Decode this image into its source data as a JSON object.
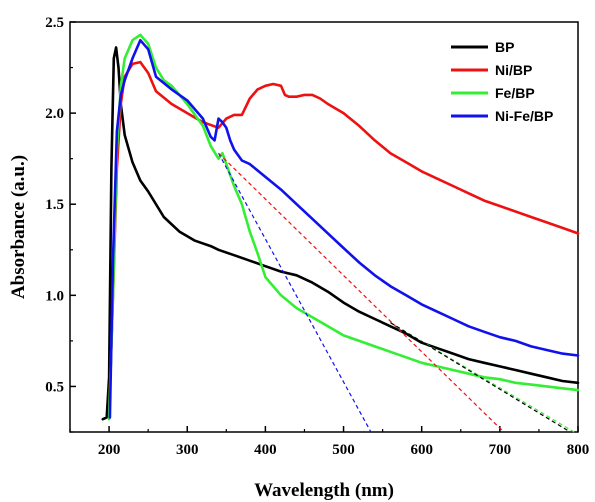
{
  "chart_data": {
    "type": "line",
    "title": "",
    "xlabel": "Wavelength (nm)",
    "ylabel": "Absorbance (a.u.)",
    "xlim": [
      150,
      800
    ],
    "ylim": [
      0.25,
      2.5
    ],
    "x_ticks": [
      200,
      300,
      400,
      500,
      600,
      700,
      800
    ],
    "x_tick_labels": [
      "200",
      "300",
      "400",
      "500",
      "600",
      "700",
      "800"
    ],
    "y_ticks": [
      0.5,
      1.0,
      1.5,
      2.0,
      2.5
    ],
    "y_tick_labels": [
      "0.5",
      "1.0",
      "1.5",
      "2.0",
      "2.5"
    ],
    "grid": false,
    "legend_position": "top-right",
    "series": [
      {
        "name": "BP",
        "color": "#000000",
        "style": "solid",
        "x": [
          192,
          197,
          200,
          203,
          206,
          209,
          212,
          215,
          220,
          230,
          240,
          250,
          270,
          290,
          310,
          330,
          340,
          360,
          380,
          400,
          420,
          440,
          460,
          480,
          500,
          520,
          540,
          560,
          580,
          600,
          620,
          640,
          660,
          680,
          700,
          720,
          740,
          760,
          780,
          800
        ],
        "y": [
          0.32,
          0.33,
          0.55,
          1.7,
          2.3,
          2.36,
          2.25,
          2.05,
          1.88,
          1.73,
          1.63,
          1.57,
          1.43,
          1.35,
          1.3,
          1.27,
          1.25,
          1.22,
          1.19,
          1.16,
          1.13,
          1.11,
          1.07,
          1.02,
          0.96,
          0.91,
          0.87,
          0.83,
          0.79,
          0.74,
          0.71,
          0.68,
          0.65,
          0.63,
          0.61,
          0.59,
          0.57,
          0.55,
          0.53,
          0.52
        ]
      },
      {
        "name": "Ni/BP",
        "color": "#ee1111",
        "style": "solid",
        "x": [
          200,
          205,
          210,
          215,
          220,
          230,
          240,
          250,
          260,
          280,
          300,
          320,
          340,
          350,
          360,
          370,
          380,
          390,
          400,
          410,
          420,
          425,
          430,
          440,
          450,
          460,
          470,
          480,
          500,
          520,
          540,
          560,
          580,
          600,
          620,
          640,
          660,
          680,
          700,
          720,
          740,
          760,
          780,
          800
        ],
        "y": [
          0.33,
          1.0,
          1.7,
          2.05,
          2.2,
          2.27,
          2.28,
          2.22,
          2.12,
          2.05,
          2.0,
          1.95,
          1.92,
          1.97,
          1.99,
          1.99,
          2.08,
          2.13,
          2.15,
          2.16,
          2.15,
          2.1,
          2.09,
          2.09,
          2.1,
          2.1,
          2.08,
          2.05,
          2.0,
          1.93,
          1.85,
          1.78,
          1.73,
          1.68,
          1.64,
          1.6,
          1.56,
          1.52,
          1.49,
          1.46,
          1.43,
          1.4,
          1.37,
          1.34
        ]
      },
      {
        "name": "Fe/BP",
        "color": "#33ee33",
        "style": "solid",
        "x": [
          200,
          205,
          210,
          215,
          220,
          230,
          240,
          250,
          260,
          270,
          280,
          300,
          320,
          330,
          340,
          345,
          350,
          360,
          370,
          380,
          390,
          400,
          420,
          440,
          460,
          480,
          500,
          520,
          540,
          560,
          580,
          600,
          620,
          640,
          660,
          680,
          700,
          720,
          740,
          760,
          780,
          800
        ],
        "y": [
          0.32,
          1.0,
          1.8,
          2.15,
          2.3,
          2.4,
          2.43,
          2.38,
          2.25,
          2.18,
          2.15,
          2.05,
          1.93,
          1.82,
          1.75,
          1.78,
          1.72,
          1.6,
          1.5,
          1.35,
          1.23,
          1.1,
          1.0,
          0.93,
          0.88,
          0.83,
          0.78,
          0.75,
          0.72,
          0.69,
          0.66,
          0.63,
          0.61,
          0.59,
          0.57,
          0.55,
          0.54,
          0.52,
          0.51,
          0.5,
          0.49,
          0.48
        ]
      },
      {
        "name": "Ni-Fe/BP",
        "color": "#1111ee",
        "style": "solid",
        "x": [
          201,
          205,
          210,
          215,
          220,
          230,
          240,
          250,
          260,
          280,
          300,
          320,
          330,
          335,
          340,
          345,
          350,
          355,
          360,
          370,
          380,
          400,
          420,
          440,
          460,
          480,
          500,
          520,
          540,
          560,
          580,
          600,
          620,
          640,
          660,
          680,
          700,
          720,
          740,
          760,
          780,
          800
        ],
        "y": [
          0.33,
          1.2,
          1.9,
          2.1,
          2.18,
          2.3,
          2.4,
          2.35,
          2.2,
          2.13,
          2.07,
          1.97,
          1.87,
          1.85,
          1.97,
          1.95,
          1.92,
          1.85,
          1.8,
          1.74,
          1.72,
          1.65,
          1.58,
          1.5,
          1.42,
          1.34,
          1.26,
          1.18,
          1.11,
          1.05,
          1.0,
          0.95,
          0.91,
          0.87,
          0.83,
          0.8,
          0.77,
          0.75,
          0.72,
          0.7,
          0.68,
          0.67
        ]
      }
    ],
    "tangent_lines": [
      {
        "color": "#1111ee",
        "style": "dashed",
        "x": [
          340,
          535
        ],
        "y": [
          1.78,
          0.25
        ]
      },
      {
        "color": "#ee1111",
        "style": "dashed",
        "x": [
          340,
          705
        ],
        "y": [
          1.78,
          0.25
        ]
      },
      {
        "color": "#33ee33",
        "style": "dashed",
        "x": [
          560,
          795
        ],
        "y": [
          0.85,
          0.25
        ]
      },
      {
        "color": "#000000",
        "style": "dashed",
        "x": [
          560,
          790
        ],
        "y": [
          0.85,
          0.25
        ]
      }
    ]
  }
}
